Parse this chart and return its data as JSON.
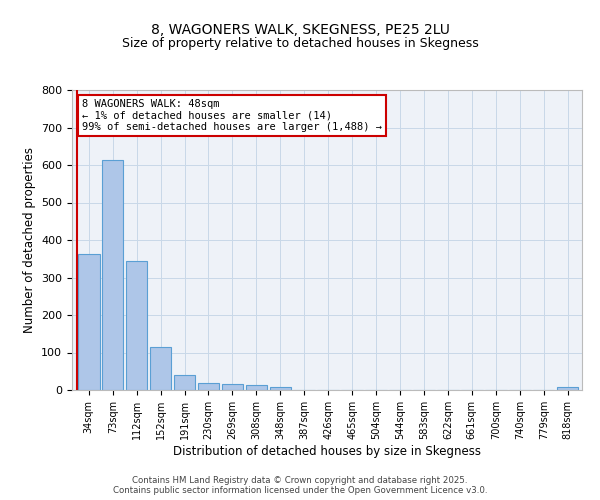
{
  "title1": "8, WAGONERS WALK, SKEGNESS, PE25 2LU",
  "title2": "Size of property relative to detached houses in Skegness",
  "xlabel": "Distribution of detached houses by size in Skegness",
  "ylabel": "Number of detached properties",
  "bar_labels": [
    "34sqm",
    "73sqm",
    "112sqm",
    "152sqm",
    "191sqm",
    "230sqm",
    "269sqm",
    "308sqm",
    "348sqm",
    "387sqm",
    "426sqm",
    "465sqm",
    "504sqm",
    "544sqm",
    "583sqm",
    "622sqm",
    "661sqm",
    "700sqm",
    "740sqm",
    "779sqm",
    "818sqm"
  ],
  "bar_values": [
    362,
    614,
    344,
    116,
    40,
    20,
    15,
    13,
    7,
    0,
    0,
    0,
    0,
    0,
    0,
    0,
    0,
    0,
    0,
    0,
    7
  ],
  "bar_color": "#aec6e8",
  "bar_edge_color": "#5a9fd4",
  "annotation_text": "8 WAGONERS WALK: 48sqm\n← 1% of detached houses are smaller (14)\n99% of semi-detached houses are larger (1,488) →",
  "annotation_box_color": "#ffffff",
  "annotation_box_edge_color": "#cc0000",
  "red_line_color": "#cc0000",
  "ylim": [
    0,
    800
  ],
  "yticks": [
    0,
    100,
    200,
    300,
    400,
    500,
    600,
    700,
    800
  ],
  "grid_color": "#c8d8e8",
  "background_color": "#eef2f8",
  "footer_text": "Contains HM Land Registry data © Crown copyright and database right 2025.\nContains public sector information licensed under the Open Government Licence v3.0.",
  "title_fontsize": 10,
  "subtitle_fontsize": 9
}
